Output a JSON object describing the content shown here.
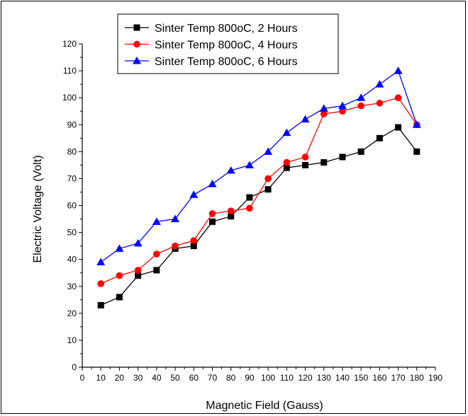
{
  "chart_data": {
    "type": "line",
    "title": "",
    "xlabel": "Magnetic Field (Gauss)",
    "ylabel": "Electric Voltage (Volt)",
    "xlim": [
      0,
      190
    ],
    "ylim": [
      0,
      120
    ],
    "x_ticks": [
      0,
      10,
      20,
      30,
      40,
      50,
      60,
      70,
      80,
      90,
      100,
      110,
      120,
      130,
      140,
      150,
      160,
      170,
      180,
      190
    ],
    "y_ticks": [
      0,
      10,
      20,
      30,
      40,
      50,
      60,
      70,
      80,
      90,
      100,
      110,
      120
    ],
    "x": [
      10,
      20,
      30,
      40,
      50,
      60,
      70,
      80,
      90,
      100,
      110,
      120,
      130,
      140,
      150,
      160,
      170,
      180
    ],
    "legend_position": "top",
    "grid": false,
    "series": [
      {
        "name": "Sinter Temp 800oC, 2 Hours",
        "color": "#000000",
        "marker": "square",
        "values": [
          23,
          26,
          34,
          36,
          44,
          45,
          54,
          56,
          63,
          66,
          74,
          75,
          76,
          78,
          80,
          85,
          89,
          80
        ]
      },
      {
        "name": "Sinter Temp 800oC, 4 Hours",
        "color": "#ff0000",
        "marker": "circle",
        "values": [
          31,
          34,
          36,
          42,
          45,
          47,
          57,
          58,
          59,
          70,
          76,
          78,
          94,
          95,
          97,
          98,
          100,
          90
        ]
      },
      {
        "name": "Sinter Temp 800oC, 6 Hours",
        "color": "#0000ff",
        "marker": "triangle",
        "values": [
          39,
          44,
          46,
          54,
          55,
          64,
          68,
          73,
          75,
          80,
          87,
          92,
          96,
          97,
          100,
          105,
          110,
          90
        ]
      }
    ]
  }
}
